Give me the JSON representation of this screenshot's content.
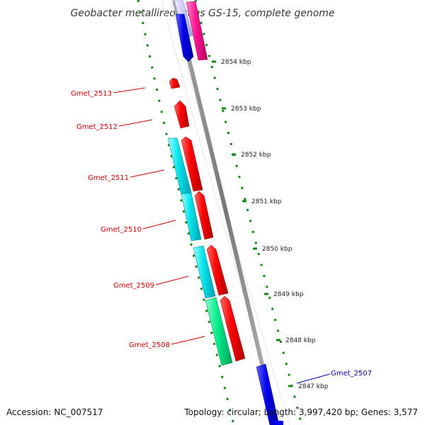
{
  "title": "Geobacter metallireducens GS-15, complete genome",
  "footer": {
    "accession": "Accession: NC_007517",
    "summary": "Topology: circular; Length: 3,997,420 bp; Genes: 3,577"
  },
  "ticks": [
    "2854 kbp",
    "2853 kbp",
    "2852 kbp",
    "2851 kbp",
    "2850 kbp",
    "2849 kbp",
    "2848 kbp",
    "2847 kbp"
  ],
  "genes": [
    {
      "name": "Gmet_2513",
      "color": "#cc0000"
    },
    {
      "name": "Gmet_2512",
      "color": "#cc0000"
    },
    {
      "name": "Gmet_2511",
      "color": "#cc0000"
    },
    {
      "name": "Gmet_2510",
      "color": "#cc0000"
    },
    {
      "name": "Gmet_2509",
      "color": "#cc0000"
    },
    {
      "name": "Gmet_2508",
      "color": "#cc0000"
    },
    {
      "name": "Gmet_2507",
      "color": "#0000aa"
    }
  ],
  "colors": {
    "backbone": "#888888",
    "dotted_track": "#118811",
    "cds_red": "#ff0000",
    "cds_blue": "#0000ee",
    "cds_magenta": "#ff1493",
    "cog_cyan": "#00e5ee",
    "cog_green": "#00ee88",
    "cog_lavender": "#ccccff"
  }
}
